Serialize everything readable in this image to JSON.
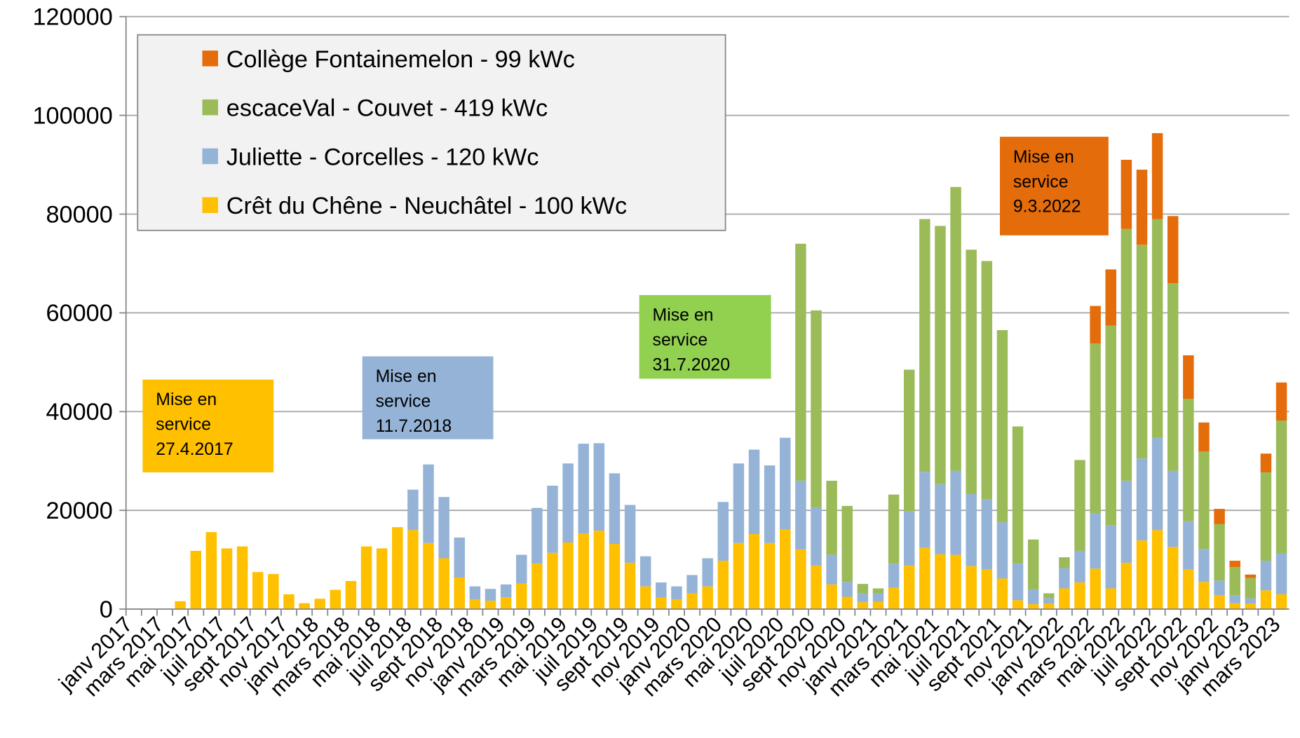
{
  "chart_data": {
    "type": "stacked-bar",
    "categories": [
      "janv 2017",
      null,
      "mars 2017",
      null,
      "mai 2017",
      null,
      "juil 2017",
      null,
      "sept 2017",
      null,
      "nov 2017",
      null,
      "janv 2018",
      null,
      "mars 2018",
      null,
      "mai 2018",
      null,
      "juil 2018",
      null,
      "sept 2018",
      null,
      "nov 2018",
      null,
      "janv 2019",
      null,
      "mars 2019",
      null,
      "mai 2019",
      null,
      "juil 2019",
      null,
      "sept 2019",
      null,
      "nov 2019",
      null,
      "janv 2020",
      null,
      "mars 2020",
      null,
      "mai 2020",
      null,
      "juil 2020",
      null,
      "sept 2020",
      null,
      "nov 2020",
      null,
      "janv 2021",
      null,
      "mars 2021",
      null,
      "mai 2021",
      null,
      "juil 2021",
      null,
      "sept 2021",
      null,
      "nov 2021",
      null,
      "janv 2022",
      null,
      "mars 2022",
      null,
      "mai 2022",
      null,
      "juil 2022",
      null,
      "sept 2022",
      null,
      "nov 2022",
      null,
      "janv 2023",
      null,
      "mars 2023"
    ],
    "series": [
      {
        "name": "Crêt du Chêne - Neuchâtel - 100 kWc",
        "color": "#ffc000",
        "values": [
          0,
          0,
          0,
          1600,
          11800,
          15600,
          12300,
          12700,
          7500,
          7100,
          3000,
          1200,
          2100,
          3900,
          5700,
          12700,
          12300,
          16600,
          16000,
          13400,
          10300,
          6400,
          2000,
          1700,
          2400,
          5200,
          9200,
          11400,
          13500,
          15300,
          15900,
          13200,
          9400,
          4600,
          2300,
          2000,
          3200,
          4600,
          9800,
          13400,
          15200,
          13400,
          16100,
          12100,
          8800,
          5000,
          2500,
          1400,
          1500,
          4300,
          8800,
          12400,
          11100,
          11000,
          8700,
          8000,
          6200,
          1800,
          1000,
          1100,
          4200,
          5400,
          8200,
          4200,
          9400,
          13900,
          16000,
          12600,
          8000,
          5500,
          2800,
          1200,
          1100,
          3800,
          3000
        ]
      },
      {
        "name": "Juliette - Corcelles - 120 kWc",
        "color": "#95b3d7",
        "values": [
          null,
          null,
          null,
          null,
          null,
          null,
          null,
          null,
          null,
          null,
          null,
          null,
          null,
          null,
          null,
          null,
          null,
          null,
          8200,
          15900,
          12400,
          8100,
          2600,
          2400,
          2600,
          5800,
          11300,
          13600,
          16000,
          18200,
          17700,
          14300,
          11700,
          6100,
          3100,
          2600,
          3700,
          5700,
          11900,
          16100,
          17100,
          15700,
          18600,
          13900,
          11800,
          6000,
          3000,
          1800,
          1700,
          4900,
          11000,
          15400,
          14200,
          17000,
          14600,
          14200,
          11400,
          7400,
          3000,
          1100,
          4100,
          6400,
          11200,
          12800,
          16600,
          16600,
          18700,
          15400,
          9800,
          6700,
          3000,
          1600,
          1100,
          6000,
          8300
        ]
      },
      {
        "name": "escaceVal - Couvet - 419 kWc",
        "color": "#9bbb59",
        "values": [
          null,
          null,
          null,
          null,
          null,
          null,
          null,
          null,
          null,
          null,
          null,
          null,
          null,
          null,
          null,
          null,
          null,
          null,
          null,
          null,
          null,
          null,
          null,
          null,
          null,
          null,
          null,
          null,
          null,
          null,
          null,
          null,
          null,
          null,
          null,
          null,
          null,
          null,
          null,
          null,
          null,
          null,
          null,
          48000,
          39900,
          15000,
          15400,
          1900,
          1000,
          14000,
          28700,
          51200,
          52300,
          57500,
          49500,
          48300,
          38900,
          27800,
          10100,
          1000,
          2200,
          18400,
          34400,
          40400,
          51000,
          43300,
          44300,
          38000,
          24800,
          19700,
          11400,
          5700,
          4100,
          17900,
          26900
        ]
      },
      {
        "name": "Collège Fontainemelon - 99 kWc",
        "color": "#e46c0a",
        "values": [
          null,
          null,
          null,
          null,
          null,
          null,
          null,
          null,
          null,
          null,
          null,
          null,
          null,
          null,
          null,
          null,
          null,
          null,
          null,
          null,
          null,
          null,
          null,
          null,
          null,
          null,
          null,
          null,
          null,
          null,
          null,
          null,
          null,
          null,
          null,
          null,
          null,
          null,
          null,
          null,
          null,
          null,
          null,
          null,
          null,
          null,
          null,
          null,
          null,
          null,
          null,
          null,
          null,
          null,
          null,
          null,
          null,
          null,
          null,
          null,
          null,
          null,
          7600,
          11400,
          14000,
          15200,
          17400,
          13600,
          8800,
          5900,
          3100,
          1300,
          700,
          3800,
          7700
        ]
      }
    ],
    "ylim": [
      0,
      120000
    ],
    "yticks": [
      0,
      20000,
      40000,
      60000,
      80000,
      100000,
      120000
    ],
    "grid": true,
    "legend": "upper left",
    "annotations": [
      {
        "lines": [
          "Mise en",
          "service",
          "27.4.2017"
        ],
        "color": "#ffc000"
      },
      {
        "lines": [
          "Mise en",
          "service",
          "11.7.2018"
        ],
        "color": "#95b3d7"
      },
      {
        "lines": [
          "Mise en",
          "service",
          "31.7.2020"
        ],
        "color": "#92d050"
      },
      {
        "lines": [
          "Mise en",
          "service",
          "9.3.2022"
        ],
        "color": "#e46c0a"
      }
    ]
  }
}
